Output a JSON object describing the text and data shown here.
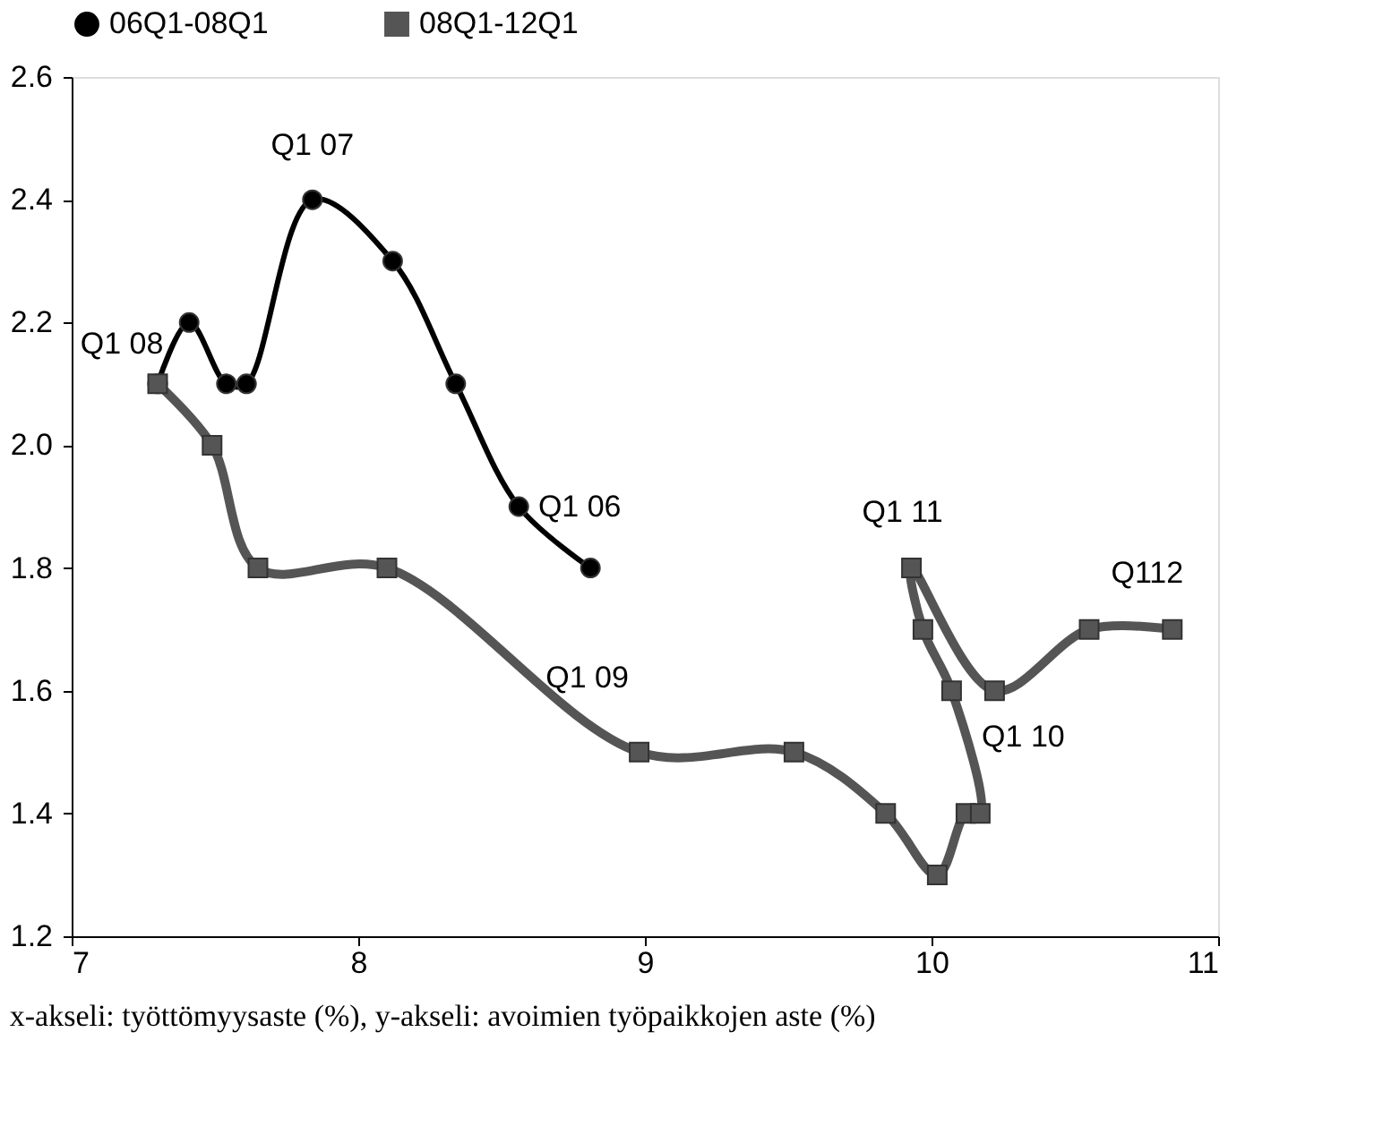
{
  "chart_data": {
    "type": "line",
    "xlim": [
      7,
      11
    ],
    "xticks": [
      7,
      8,
      9,
      10,
      11
    ],
    "ylim": [
      1.2,
      2.6
    ],
    "yticks": [
      1.2,
      1.4,
      1.6,
      1.8,
      {
        "value": 2,
        "label": "2.0"
      },
      2.2,
      2.4,
      2.6
    ],
    "grid": false,
    "legend": "top",
    "line_style": "solid",
    "series": [
      {
        "name": "06Q1-08Q1",
        "color": "#000000",
        "marker": "circle",
        "x": [
          8.81,
          8.56,
          8.34,
          8.12,
          7.84,
          7.61,
          7.54,
          7.41,
          7.3
        ],
        "values": [
          1.8,
          1.9,
          2.1,
          2.3,
          2.4,
          2.1,
          2.1,
          2.2,
          2.1
        ]
      },
      {
        "name": "08Q1-12Q1",
        "color": "#555555",
        "marker": "square",
        "x": [
          7.3,
          7.49,
          7.65,
          8.1,
          8.98,
          9.52,
          9.84,
          10.02,
          10.12,
          10.17,
          10.07,
          9.97,
          9.93,
          10.22,
          10.55,
          10.84
        ],
        "values": [
          2.1,
          2.0,
          1.8,
          1.8,
          1.5,
          1.5,
          1.4,
          1.3,
          1.4,
          1.4,
          1.6,
          1.7,
          1.8,
          1.6,
          1.7,
          1.7
        ]
      }
    ],
    "annotations": [
      {
        "text": "Q1 07",
        "x": 7.84,
        "y": 2.4
      },
      {
        "text": "Q1 08",
        "x": 7.3,
        "y": 2.1
      },
      {
        "text": "Q1 06",
        "x": 8.81,
        "y": 1.8
      },
      {
        "text": "Q1 09",
        "x": 8.98,
        "y": 1.5
      },
      {
        "text": "Q1 11",
        "x": 9.93,
        "y": 1.8
      },
      {
        "text": "Q112",
        "x": 10.84,
        "y": 1.7
      },
      {
        "text": "Q1 10",
        "x": 10.07,
        "y": 1.6
      },
      "x-akseli: työttömyysaste (%), y-akseli: avoimien työpaikkojen aste (%)"
    ]
  }
}
